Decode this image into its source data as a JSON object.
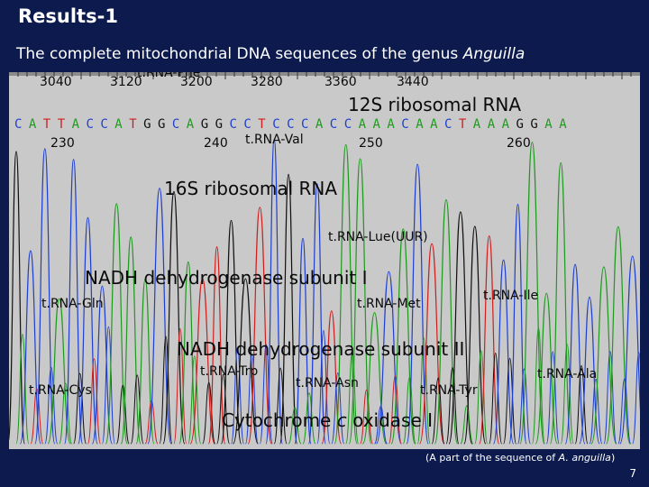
{
  "title": "Results-1",
  "subtitle": {
    "text": "The complete mitochondrial DNA sequences of the genus ",
    "genus": "Anguilla"
  },
  "top_scale": [
    "3040",
    "3120",
    "3200",
    "3280",
    "3360",
    "3440"
  ],
  "sequence": {
    "letters": [
      "C",
      "A",
      "T",
      "T",
      "A",
      "C",
      "C",
      "A",
      "T",
      "G",
      "G",
      "C",
      "A",
      "G",
      "G",
      "C",
      "C",
      "T",
      "C",
      "C",
      "C",
      "A",
      "C",
      "C",
      "A",
      "A",
      "A",
      "C",
      "A",
      "A",
      "C",
      "T",
      "A",
      "A",
      "A",
      "G",
      "G",
      "A",
      "A"
    ],
    "positions": [
      "230",
      "240",
      "250",
      "260"
    ],
    "base_colors": {
      "A": "#1f9a1f",
      "C": "#1f3fd0",
      "G": "#111111",
      "T": "#d01f1f"
    }
  },
  "genes": {
    "trna_phe": "t.RNA-Phe",
    "rrna_12s": "12S ribosomal RNA",
    "trna_val": "t.RNA-Val",
    "rrna_16s": "16S ribosomal RNA",
    "trna_leu": "t.RNA-Lue(UUR)",
    "nd1": "NADH dehydrogenase subunit I",
    "trna_gln": "t.RNA-Gln",
    "trna_met": "t.RNA-Met",
    "trna_ile": "t.RNA-Ile",
    "nd2": "NADH dehydrogenase subunit II",
    "trna_trp": "t.RNA-Trp",
    "trna_asn": "t.RNA-Asn",
    "trna_tyr": "t.RNA-Tyr",
    "trna_ala": "t.RNA-Ala",
    "trna_cys": "t.RNA-Cys",
    "cox1_prefix": "Cytochrome ",
    "cox1_italic": "c",
    "cox1_suffix": " oxidase I"
  },
  "caption": {
    "prefix": "(A part of the sequence of ",
    "species": "A. anguilla",
    "suffix": ")"
  },
  "page_number": "7"
}
